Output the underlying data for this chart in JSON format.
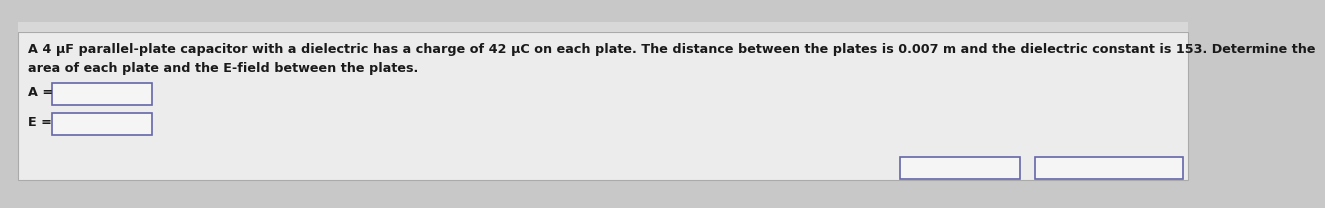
{
  "background_color": "#c8c8c8",
  "panel_color": "#ececec",
  "panel_bottom_color": "#c8c8c8",
  "text_line1": "A 4 μF parallel-plate capacitor with a dielectric has a charge of 42 μC on each plate. The distance between the plates is 0.007 m and the dielectric constant is 153. Determine the",
  "text_line2": "area of each plate and the E-field between the plates.",
  "label_A": "A =",
  "label_E": "E =",
  "font_size_body": 9.2,
  "font_size_labels": 9.2,
  "text_color": "#1a1a1a",
  "box_border_color": "#6666aa",
  "box_fill_color": "#f5f5f5"
}
